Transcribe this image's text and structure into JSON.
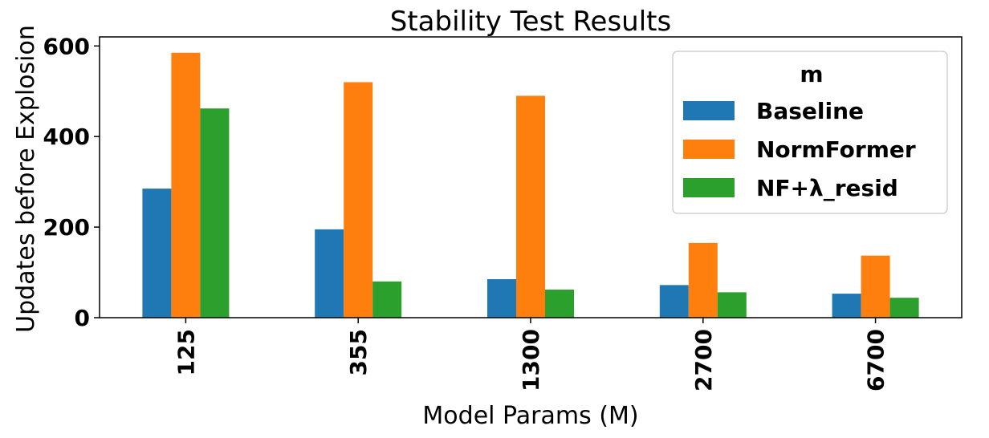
{
  "chart_data": {
    "type": "bar",
    "title": "Stability Test Results",
    "xlabel": "Model Params (M)",
    "ylabel": "Updates before Explosion",
    "categories": [
      "125",
      "355",
      "1300",
      "2700",
      "6700"
    ],
    "ylim": [
      0,
      620
    ],
    "yticks": [
      0,
      200,
      400,
      600
    ],
    "grid": false,
    "legend": {
      "title": "m",
      "placement": "top-right"
    },
    "series": [
      {
        "name": "Baseline",
        "color": "#1f77b4",
        "values": [
          285,
          195,
          85,
          72,
          53
        ]
      },
      {
        "name": "NormFormer",
        "color": "#ff7f0e",
        "values": [
          585,
          520,
          490,
          165,
          137
        ]
      },
      {
        "name": "NF+λ_resid",
        "color": "#2ca02c",
        "values": [
          462,
          80,
          62,
          56,
          44
        ]
      }
    ]
  }
}
